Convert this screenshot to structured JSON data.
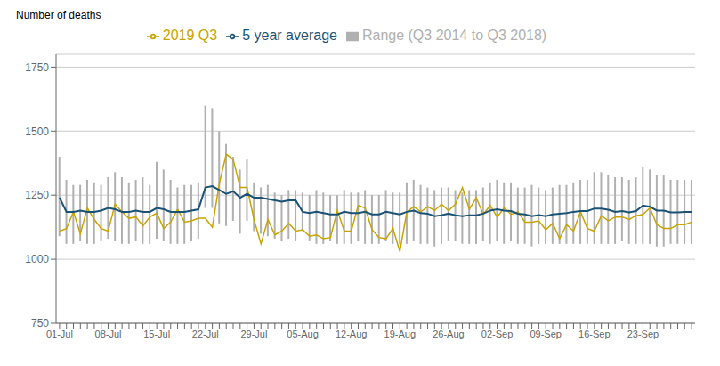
{
  "chart_data": {
    "type": "line",
    "ylabel": "Number of deaths",
    "categories": [
      "01-Jul",
      null,
      null,
      null,
      null,
      null,
      null,
      "08-Jul",
      null,
      null,
      null,
      null,
      null,
      null,
      "15-Jul",
      null,
      null,
      null,
      null,
      null,
      null,
      "22-Jul",
      null,
      null,
      null,
      null,
      null,
      null,
      "29-Jul",
      null,
      null,
      null,
      null,
      null,
      null,
      "05-Aug",
      null,
      null,
      null,
      null,
      null,
      null,
      "12-Aug",
      null,
      null,
      null,
      null,
      null,
      null,
      "19-Aug",
      null,
      null,
      null,
      null,
      null,
      null,
      "26-Aug",
      null,
      null,
      null,
      null,
      null,
      null,
      "02-Sep",
      null,
      null,
      null,
      null,
      null,
      null,
      "09-Sep",
      null,
      null,
      null,
      null,
      null,
      null,
      "16-Sep",
      null,
      null,
      null,
      null,
      null,
      null,
      "23-Sep",
      null,
      null,
      null,
      null,
      null,
      null,
      null
    ],
    "series": [
      {
        "name": "Range (Q3 2014 to Q3 2018)",
        "type": "range",
        "color": "#b0b0b0",
        "low": [
          1090,
          1060,
          1060,
          1070,
          1060,
          1060,
          1070,
          1080,
          1070,
          1060,
          1060,
          1070,
          1060,
          1060,
          1080,
          1070,
          1060,
          1060,
          1060,
          1070,
          1080,
          1200,
          1200,
          1140,
          1130,
          1150,
          1100,
          1150,
          1110,
          1100,
          1090,
          1080,
          1070,
          1080,
          1070,
          1110,
          1070,
          1060,
          1060,
          1070,
          1060,
          1060,
          1060,
          1070,
          1060,
          1060,
          1060,
          1070,
          1060,
          1060,
          1060,
          1070,
          1060,
          1060,
          1050,
          1060,
          1070,
          1070,
          1060,
          1060,
          1060,
          1070,
          1060,
          1070,
          1060,
          1070,
          1060,
          1060,
          1050,
          1060,
          1060,
          1060,
          1060,
          1060,
          1060,
          1060,
          1060,
          1060,
          1060,
          1060,
          1060,
          1070,
          1060,
          1060,
          1060,
          1060,
          1050,
          1050,
          1060,
          1060,
          1060,
          1060
        ],
        "high": [
          1400,
          1310,
          1290,
          1290,
          1310,
          1300,
          1290,
          1320,
          1340,
          1320,
          1300,
          1310,
          1320,
          1290,
          1380,
          1350,
          1310,
          1280,
          1290,
          1290,
          1300,
          1600,
          1590,
          1500,
          1450,
          1400,
          1350,
          1390,
          1300,
          1280,
          1290,
          1260,
          1250,
          1270,
          1270,
          1260,
          1250,
          1270,
          1260,
          1250,
          1250,
          1270,
          1260,
          1260,
          1270,
          1250,
          1250,
          1270,
          1260,
          1260,
          1300,
          1310,
          1290,
          1280,
          1270,
          1280,
          1280,
          1270,
          1260,
          1270,
          1270,
          1280,
          1300,
          1310,
          1300,
          1300,
          1280,
          1280,
          1290,
          1280,
          1270,
          1280,
          1290,
          1290,
          1300,
          1310,
          1310,
          1340,
          1340,
          1330,
          1320,
          1320,
          1310,
          1320,
          1360,
          1350,
          1330,
          1330,
          1310,
          1310,
          1310,
          1310
        ]
      },
      {
        "name": "2019 Q3",
        "type": "line",
        "color": "#c8a400",
        "values": [
          1110,
          1120,
          1185,
          1100,
          1200,
          1155,
          1120,
          1110,
          1215,
          1185,
          1160,
          1165,
          1130,
          1165,
          1180,
          1120,
          1145,
          1195,
          1145,
          1150,
          1160,
          1160,
          1125,
          1295,
          1410,
          1390,
          1280,
          1280,
          1155,
          1060,
          1155,
          1095,
          1110,
          1140,
          1110,
          1115,
          1090,
          1095,
          1080,
          1085,
          1190,
          1110,
          1110,
          1210,
          1200,
          1115,
          1085,
          1080,
          1120,
          1030,
          1185,
          1205,
          1185,
          1205,
          1190,
          1215,
          1190,
          1215,
          1280,
          1195,
          1240,
          1175,
          1210,
          1165,
          1200,
          1175,
          1185,
          1145,
          1145,
          1150,
          1115,
          1140,
          1080,
          1135,
          1110,
          1185,
          1120,
          1110,
          1170,
          1150,
          1165,
          1165,
          1155,
          1170,
          1175,
          1200,
          1135,
          1120,
          1120,
          1135,
          1135,
          1145
        ]
      },
      {
        "name": "5 year average",
        "type": "line",
        "color": "#1a5276",
        "values": [
          1240,
          1185,
          1185,
          1190,
          1185,
          1185,
          1190,
          1200,
          1195,
          1185,
          1185,
          1190,
          1185,
          1185,
          1200,
          1195,
          1185,
          1185,
          1185,
          1190,
          1195,
          1280,
          1285,
          1270,
          1255,
          1265,
          1240,
          1255,
          1240,
          1240,
          1235,
          1230,
          1225,
          1230,
          1230,
          1185,
          1180,
          1185,
          1180,
          1175,
          1175,
          1185,
          1180,
          1180,
          1185,
          1175,
          1175,
          1185,
          1180,
          1175,
          1185,
          1190,
          1180,
          1178,
          1168,
          1172,
          1178,
          1172,
          1168,
          1172,
          1172,
          1178,
          1190,
          1195,
          1190,
          1188,
          1178,
          1175,
          1168,
          1172,
          1168,
          1175,
          1178,
          1180,
          1185,
          1188,
          1188,
          1198,
          1198,
          1193,
          1185,
          1188,
          1183,
          1188,
          1210,
          1205,
          1190,
          1190,
          1183,
          1183,
          1185,
          1185
        ]
      }
    ],
    "ylim": [
      750,
      1800
    ],
    "yticks": [
      750,
      1000,
      1250,
      1500,
      1750
    ],
    "grid": true,
    "legend": "top"
  }
}
